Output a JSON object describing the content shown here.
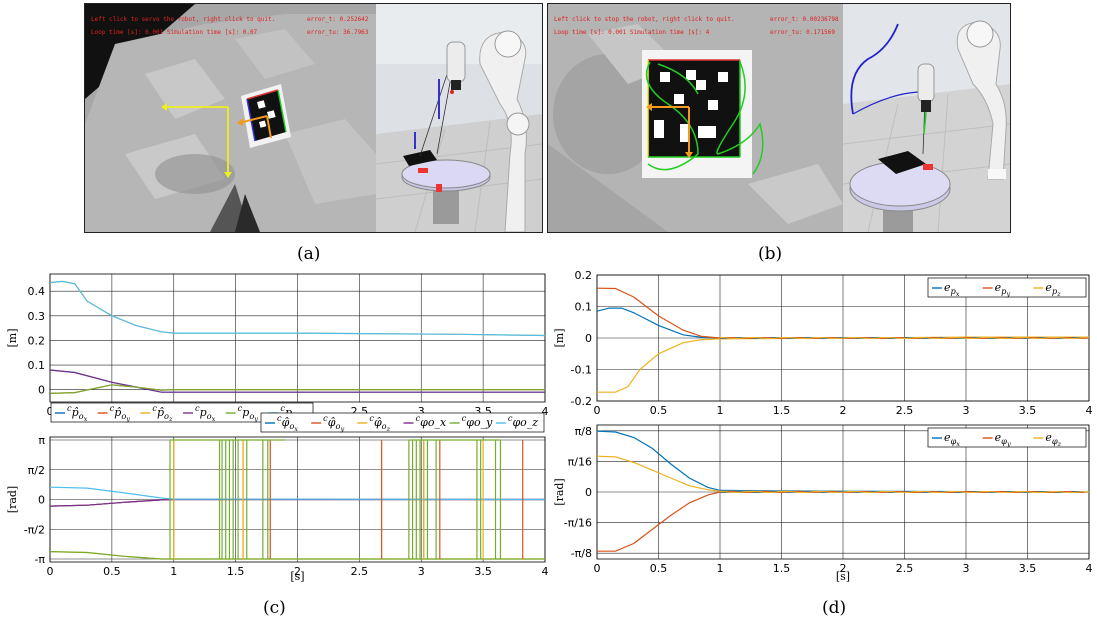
{
  "sublabels": {
    "a": "(a)",
    "b": "(b)",
    "c": "(c)",
    "d": "(d)"
  },
  "screens": {
    "a": {
      "overlay_line1": "Left click to servo the robot, right click to quit.",
      "overlay_line2": "Loop time [s]: 0.001  Simulation time [s]: 0.07",
      "error_t": "error_t: 0.252642",
      "error_tu": "error_tu: 36.7963"
    },
    "b": {
      "overlay_line1": "Left click to stop the robot, right click to quit.",
      "overlay_line2": "Loop time [s]: 0.001  Simulation time [s]: 4",
      "error_t": "error_t: 0.00236798",
      "error_tu": "error_tu: 0.171569"
    }
  },
  "colors": {
    "blue": "#0072BD",
    "red": "#D95319",
    "yellow": "#EDB120",
    "purple": "#7E2F8E",
    "green": "#77AC30",
    "cyan": "#4DBEEE"
  },
  "chart_data": [
    {
      "id": "c_top",
      "type": "line",
      "ylabel": "[m]",
      "xlim": [
        0,
        4
      ],
      "ylim": [
        -0.05,
        0.47
      ],
      "xticks": [
        "0",
        "0.5",
        "1",
        "1.5",
        "2",
        "2.5",
        "3",
        "3.5",
        "4"
      ],
      "yticks": [
        {
          "v": 0,
          "label": "0"
        },
        {
          "v": 0.1,
          "label": "0.1"
        },
        {
          "v": 0.2,
          "label": "0.2"
        },
        {
          "v": 0.3,
          "label": "0.3"
        },
        {
          "v": 0.4,
          "label": "0.4"
        }
      ],
      "grid": true,
      "legend_position": "bottom",
      "legend": [
        "^c p̂_{o_x}",
        "^c p̂_{o_y}",
        "^c p̂_{o_z}",
        "^c p_{o_x}",
        "^c p_{o_y}",
        "^c p_{o_z}"
      ],
      "series": [
        {
          "color": "blue",
          "x": [
            0,
            0.2,
            0.5,
            0.7,
            0.9,
            1.0,
            4.0
          ],
          "y": [
            0.08,
            0.07,
            0.03,
            0.01,
            -0.01,
            -0.01,
            -0.01
          ]
        },
        {
          "color": "red",
          "x": [
            0,
            0.2,
            0.5,
            0.7,
            0.9,
            1.0,
            4.0
          ],
          "y": [
            -0.015,
            -0.012,
            0.02,
            0.01,
            -0.002,
            0,
            0
          ]
        },
        {
          "color": "yellow",
          "x": [
            0,
            0.1,
            0.2,
            0.3,
            0.5,
            0.7,
            0.9,
            1.0,
            2.0,
            3.3,
            4.0
          ],
          "y": [
            0.435,
            0.44,
            0.43,
            0.36,
            0.3,
            0.26,
            0.235,
            0.23,
            0.23,
            0.225,
            0.22
          ]
        },
        {
          "color": "purple",
          "x": [
            0,
            0.2,
            0.5,
            0.7,
            0.9,
            1.0,
            4.0
          ],
          "y": [
            0.08,
            0.07,
            0.03,
            0.01,
            -0.01,
            -0.01,
            -0.01
          ]
        },
        {
          "color": "green",
          "x": [
            0,
            0.2,
            0.5,
            0.7,
            0.9,
            1.0,
            4.0
          ],
          "y": [
            -0.015,
            -0.012,
            0.02,
            0.01,
            -0.002,
            0,
            0
          ]
        },
        {
          "color": "cyan",
          "x": [
            0,
            0.1,
            0.2,
            0.3,
            0.5,
            0.7,
            0.9,
            1.0,
            2.0,
            3.3,
            4.0
          ],
          "y": [
            0.435,
            0.44,
            0.43,
            0.36,
            0.3,
            0.26,
            0.235,
            0.23,
            0.23,
            0.225,
            0.22
          ]
        }
      ]
    },
    {
      "id": "c_bottom",
      "type": "line",
      "ylabel": "[rad]",
      "xlabel": "[s]",
      "xlim": [
        0,
        4
      ],
      "ylim": [
        -3.3,
        3.3
      ],
      "xticks": [
        "0",
        "0.5",
        "1",
        "1.5",
        "2",
        "2.5",
        "3",
        "3.5",
        "4"
      ],
      "yticks": [
        {
          "v": -3.1416,
          "label": "-π"
        },
        {
          "v": -1.5708,
          "label": "-π/2"
        },
        {
          "v": 0,
          "label": "0"
        },
        {
          "v": 1.5708,
          "label": "π/2"
        },
        {
          "v": 3.1416,
          "label": "π"
        }
      ],
      "grid": true,
      "legend_position": "top-right",
      "legend": [
        "^c φ̂_{o_x}",
        "^c φ̂_{o_y}",
        "^c φ̂_{o_z}",
        "^c φo_x",
        "^c φo_y",
        "^c φo_z"
      ],
      "series": [
        {
          "color": "blue",
          "x": [
            0,
            0.3,
            0.6,
            0.9,
            1.0,
            4.0
          ],
          "y": [
            -0.35,
            -0.3,
            -0.15,
            -0.02,
            0,
            0
          ]
        },
        {
          "color": "red",
          "x": [
            0,
            0.3,
            0.6,
            0.9,
            1.0,
            4.0
          ],
          "y": [
            -0.35,
            -0.3,
            -0.15,
            -0.02,
            0,
            0
          ]
        },
        {
          "color": "yellow",
          "x": [
            0,
            0.3,
            0.6,
            0.9,
            1.0,
            4.0
          ],
          "y": [
            -2.75,
            -2.8,
            -3.0,
            -3.14,
            -3.14,
            -3.14
          ]
        },
        {
          "color": "purple",
          "x": [
            0,
            0.3,
            0.6,
            0.9,
            1.0,
            4.0
          ],
          "y": [
            -0.35,
            -0.3,
            -0.15,
            -0.02,
            0,
            0
          ]
        },
        {
          "color": "green",
          "x": [
            0,
            0.3,
            0.6,
            0.9,
            1.0,
            4.0
          ],
          "y": [
            -2.75,
            -2.8,
            -3.0,
            -3.14,
            -3.14,
            -3.14
          ]
        },
        {
          "color": "cyan",
          "x": [
            0,
            0.3,
            0.6,
            0.9,
            1.0,
            4.0
          ],
          "y": [
            0.65,
            0.6,
            0.35,
            0.08,
            0.02,
            0.0
          ]
        }
      ],
      "wraps": {
        "green": [
          0.97,
          1.0,
          1.37,
          1.39,
          1.42,
          1.45,
          1.48,
          1.52,
          1.56,
          1.59,
          1.72,
          1.76,
          2.9,
          2.93,
          2.96,
          2.99,
          3.02,
          3.05,
          3.12,
          3.45,
          3.48,
          3.6,
          3.64
        ],
        "yellow": [
          1.0,
          1.56,
          3.02,
          3.5
        ],
        "red": [
          1.78,
          2.68,
          3.15,
          3.82
        ]
      }
    },
    {
      "id": "d_top",
      "type": "line",
      "ylabel": "[m]",
      "xlim": [
        0,
        4
      ],
      "ylim": [
        -0.2,
        0.2
      ],
      "xticks": [
        "0",
        "0.5",
        "1",
        "1.5",
        "2",
        "2.5",
        "3",
        "3.5",
        "4"
      ],
      "yticks": [
        {
          "v": -0.2,
          "label": "-0.2"
        },
        {
          "v": -0.1,
          "label": "-0.1"
        },
        {
          "v": 0,
          "label": "0"
        },
        {
          "v": 0.1,
          "label": "0.1"
        },
        {
          "v": 0.2,
          "label": "0.2"
        }
      ],
      "grid": true,
      "legend_position": "top-right",
      "legend": [
        "e_{p_x}",
        "e_{p_y}",
        "e_{p_z}"
      ],
      "series": [
        {
          "color": "blue",
          "x": [
            0,
            0.1,
            0.2,
            0.3,
            0.5,
            0.7,
            0.85,
            1.0,
            2.0,
            4.0
          ],
          "y": [
            0.085,
            0.095,
            0.095,
            0.08,
            0.04,
            0.01,
            0.002,
            0,
            0,
            0
          ]
        },
        {
          "color": "red",
          "x": [
            0,
            0.15,
            0.3,
            0.5,
            0.7,
            0.85,
            1.0,
            4.0
          ],
          "y": [
            0.158,
            0.157,
            0.13,
            0.07,
            0.025,
            0.005,
            0,
            0
          ]
        },
        {
          "color": "yellow",
          "x": [
            0,
            0.15,
            0.25,
            0.35,
            0.5,
            0.7,
            0.85,
            1.0,
            3.0,
            4.0
          ],
          "y": [
            -0.172,
            -0.172,
            -0.155,
            -0.1,
            -0.05,
            -0.015,
            -0.005,
            -0.003,
            0.003,
            0.003
          ]
        }
      ]
    },
    {
      "id": "d_bottom",
      "type": "line",
      "ylabel": "[rad]",
      "xlabel": "[s]",
      "xlim": [
        0,
        4
      ],
      "ylim": [
        -0.43,
        0.43
      ],
      "xticks": [
        "0",
        "0.5",
        "1",
        "1.5",
        "2",
        "2.5",
        "3",
        "3.5",
        "4"
      ],
      "yticks": [
        {
          "v": -0.3927,
          "label": "-π/8"
        },
        {
          "v": -0.19635,
          "label": "-π/16"
        },
        {
          "v": 0,
          "label": "0"
        },
        {
          "v": 0.19635,
          "label": "π/16"
        },
        {
          "v": 0.3927,
          "label": "π/8"
        }
      ],
      "grid": true,
      "legend_position": "top-right",
      "legend": [
        "e_{φ_x}",
        "e_{φ_y}",
        "e_{φ_z}"
      ],
      "series": [
        {
          "color": "blue",
          "x": [
            0,
            0.15,
            0.3,
            0.45,
            0.6,
            0.75,
            0.9,
            1.0,
            2.0,
            4.0
          ],
          "y": [
            0.39,
            0.385,
            0.35,
            0.28,
            0.18,
            0.09,
            0.03,
            0.01,
            0.005,
            0
          ]
        },
        {
          "color": "red",
          "x": [
            0,
            0.15,
            0.3,
            0.45,
            0.6,
            0.75,
            0.9,
            1.0,
            4.0
          ],
          "y": [
            -0.38,
            -0.38,
            -0.33,
            -0.24,
            -0.15,
            -0.07,
            -0.02,
            0,
            0
          ]
        },
        {
          "color": "yellow",
          "x": [
            0,
            0.15,
            0.3,
            0.45,
            0.6,
            0.75,
            0.9,
            1.0,
            4.0
          ],
          "y": [
            0.23,
            0.225,
            0.19,
            0.14,
            0.09,
            0.04,
            0.015,
            0.005,
            0
          ]
        }
      ]
    }
  ]
}
